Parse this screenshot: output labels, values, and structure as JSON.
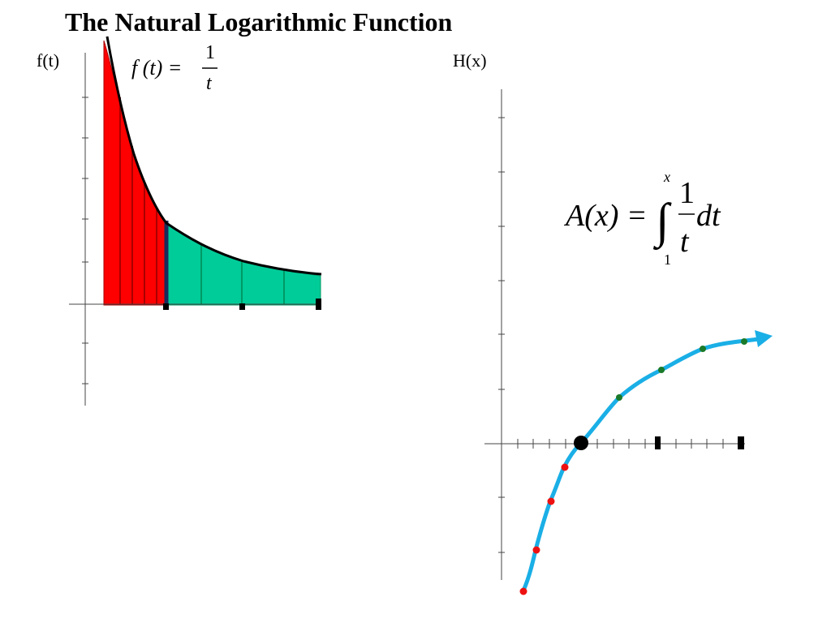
{
  "title": "The Natural Logarithmic Function",
  "left_axis_label": "f(t)",
  "right_axis_label": "H(x)",
  "left_formula": {
    "lhs": "f (t) =",
    "numerator": "1",
    "denominator": "t"
  },
  "right_formula": {
    "lhs": "A(x) =",
    "integral": "∫",
    "upper": "x",
    "lower": "1",
    "numerator": "1",
    "denominator": "t",
    "suffix": "dt"
  }
}
